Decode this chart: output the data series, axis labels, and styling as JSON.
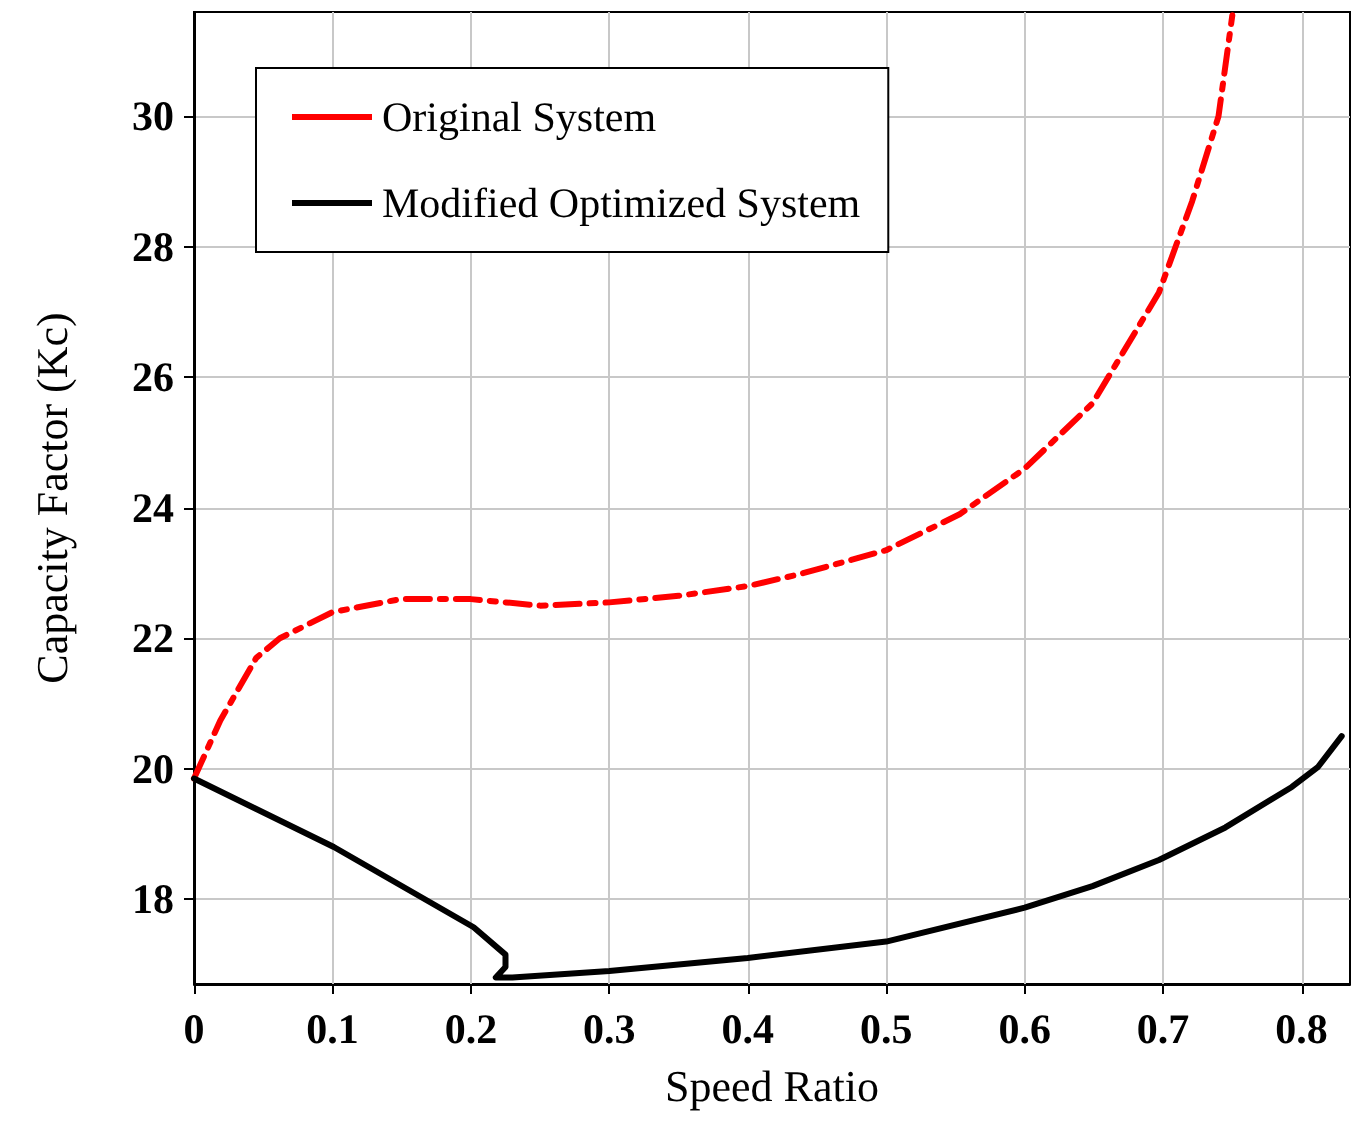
{
  "chart_data": {
    "type": "line",
    "xlabel": "Speed Ratio",
    "ylabel": "Capacity Factor (Kc)",
    "xlim": [
      0,
      0.835
    ],
    "xticks": [
      0,
      0.1,
      0.2,
      0.3,
      0.4,
      0.5,
      0.6,
      0.7,
      0.8
    ],
    "ylim": [
      16.7,
      31.6
    ],
    "yticks": [
      18,
      20,
      22,
      24,
      26,
      28,
      30
    ],
    "grid": true,
    "legend": "top left",
    "marker": "none",
    "series": [
      {
        "name": "Original System",
        "color": "#ff0000",
        "line_style": "dashed",
        "x": [
          0,
          0.019,
          0.045,
          0.062,
          0.1,
          0.149,
          0.2,
          0.25,
          0.3,
          0.35,
          0.4,
          0.437,
          0.5,
          0.553,
          0.6,
          0.649,
          0.697,
          0.721,
          0.74,
          0.75
        ],
        "values": [
          19.85,
          20.74,
          21.7,
          22.0,
          22.4,
          22.6,
          22.6,
          22.5,
          22.55,
          22.65,
          22.8,
          22.98,
          23.35,
          23.9,
          24.6,
          25.6,
          27.3,
          28.7,
          30.0,
          31.55
        ]
      },
      {
        "name": "Modified Optimized System",
        "color": "#000000",
        "line_style": "solid",
        "x": [
          0,
          0.101,
          0.202,
          0.225,
          0.225,
          0.218,
          0.23,
          0.3,
          0.4,
          0.5,
          0.6,
          0.649,
          0.697,
          0.745,
          0.793,
          0.812,
          0.829
        ],
        "values": [
          19.85,
          18.8,
          17.57,
          17.15,
          16.96,
          16.8,
          16.8,
          16.9,
          17.1,
          17.35,
          17.87,
          18.2,
          18.6,
          19.1,
          19.72,
          20.03,
          20.5
        ]
      }
    ]
  }
}
